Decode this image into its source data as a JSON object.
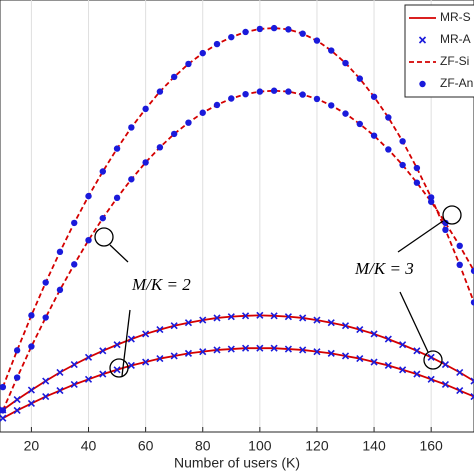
{
  "chart_data": {
    "type": "line",
    "x_label": "Number of users (K)",
    "x": [
      10,
      15,
      20,
      25,
      30,
      35,
      40,
      45,
      50,
      55,
      60,
      65,
      70,
      75,
      80,
      85,
      90,
      95,
      100,
      105,
      110,
      115,
      120,
      125,
      130,
      135,
      140,
      145,
      150,
      155,
      160,
      165,
      170,
      175
    ],
    "xlim": [
      9,
      175
    ],
    "xticks": [
      20,
      40,
      60,
      80,
      100,
      120,
      140,
      160
    ],
    "ylim": [
      0,
      100
    ],
    "grid": true,
    "legend": "upper right",
    "series": [
      {
        "name": "MR-S",
        "color": "#d40000",
        "style": "solid",
        "values": [
          [
            5.1,
            7.5,
            9.7,
            11.8,
            13.8,
            15.6,
            17.3,
            18.8,
            20.2,
            21.5,
            22.7,
            23.7,
            24.6,
            25.3,
            25.9,
            26.4,
            26.7,
            26.9,
            27.0,
            26.9,
            26.7,
            26.4,
            25.9,
            25.3,
            24.6,
            23.7,
            22.7,
            21.5,
            20.2,
            18.8,
            17.3,
            15.6,
            13.8,
            11.8
          ],
          [
            3.2,
            5.0,
            6.6,
            8.2,
            9.6,
            11.0,
            12.2,
            13.4,
            14.4,
            15.4,
            16.2,
            17.0,
            17.6,
            18.2,
            18.6,
            19.0,
            19.2,
            19.4,
            19.4,
            19.4,
            19.2,
            19.0,
            18.6,
            18.2,
            17.6,
            17.0,
            16.2,
            15.4,
            14.4,
            13.4,
            12.2,
            11.0,
            9.6,
            8.2
          ]
        ]
      },
      {
        "name": "MR-A",
        "color": "#1a1adb",
        "style": "x",
        "values": [
          [
            5.1,
            7.5,
            9.7,
            11.8,
            13.8,
            15.6,
            17.3,
            18.8,
            20.2,
            21.5,
            22.7,
            23.7,
            24.6,
            25.3,
            25.9,
            26.4,
            26.7,
            26.9,
            27.0,
            26.9,
            26.7,
            26.4,
            25.9,
            25.3,
            24.6,
            23.7,
            22.7,
            21.5,
            20.2,
            18.8,
            17.3,
            15.6,
            13.8,
            11.8
          ],
          [
            3.2,
            5.0,
            6.6,
            8.2,
            9.6,
            11.0,
            12.2,
            13.4,
            14.4,
            15.4,
            16.2,
            17.0,
            17.6,
            18.2,
            18.6,
            19.0,
            19.2,
            19.4,
            19.4,
            19.4,
            19.2,
            19.0,
            18.6,
            18.2,
            17.6,
            17.0,
            16.2,
            15.4,
            14.4,
            13.4,
            12.2,
            11.0,
            9.6,
            8.2
          ]
        ]
      },
      {
        "name": "ZF-Si",
        "color": "#d40000",
        "style": "dashed",
        "values": [
          [
            10.4,
            18.9,
            27.0,
            34.6,
            41.7,
            48.4,
            54.6,
            60.3,
            65.6,
            70.5,
            74.8,
            78.8,
            82.2,
            85.2,
            87.7,
            89.8,
            91.4,
            92.6,
            93.3,
            93.5,
            93.2,
            92.2,
            90.6,
            88.3,
            85.4,
            81.8,
            77.6,
            72.8,
            67.3,
            61.1,
            54.3,
            46.8,
            38.7,
            30.0
          ],
          [
            5.0,
            12.6,
            19.8,
            26.5,
            32.9,
            38.8,
            44.4,
            49.5,
            54.2,
            58.5,
            62.4,
            65.9,
            69.0,
            71.6,
            73.9,
            75.7,
            77.2,
            78.2,
            78.8,
            79.0,
            78.8,
            78.1,
            77.1,
            75.6,
            73.7,
            71.3,
            68.6,
            65.4,
            61.8,
            57.7,
            53.3,
            48.4,
            43.1,
            37.3
          ]
        ]
      },
      {
        "name": "ZF-An",
        "color": "#1a1adb",
        "style": "dot",
        "values": [
          [
            10.4,
            18.9,
            27.0,
            34.6,
            41.7,
            48.4,
            54.6,
            60.3,
            65.6,
            70.5,
            74.8,
            78.8,
            82.2,
            85.2,
            87.7,
            89.8,
            91.4,
            92.6,
            93.3,
            93.5,
            93.2,
            92.2,
            90.6,
            88.3,
            85.4,
            81.8,
            77.6,
            72.8,
            67.3,
            61.1,
            54.3,
            46.8,
            38.7,
            30.0
          ],
          [
            5.0,
            12.6,
            19.8,
            26.5,
            32.9,
            38.8,
            44.4,
            49.5,
            54.2,
            58.5,
            62.4,
            65.9,
            69.0,
            71.6,
            73.9,
            75.7,
            77.2,
            78.2,
            78.8,
            79.0,
            78.8,
            78.1,
            77.1,
            75.6,
            73.7,
            71.3,
            68.6,
            65.4,
            61.8,
            57.7,
            53.3,
            48.4,
            43.1,
            37.3
          ]
        ]
      }
    ],
    "annotations": [
      {
        "text": "M/K = 2"
      },
      {
        "text": "M/K = 3"
      }
    ]
  }
}
